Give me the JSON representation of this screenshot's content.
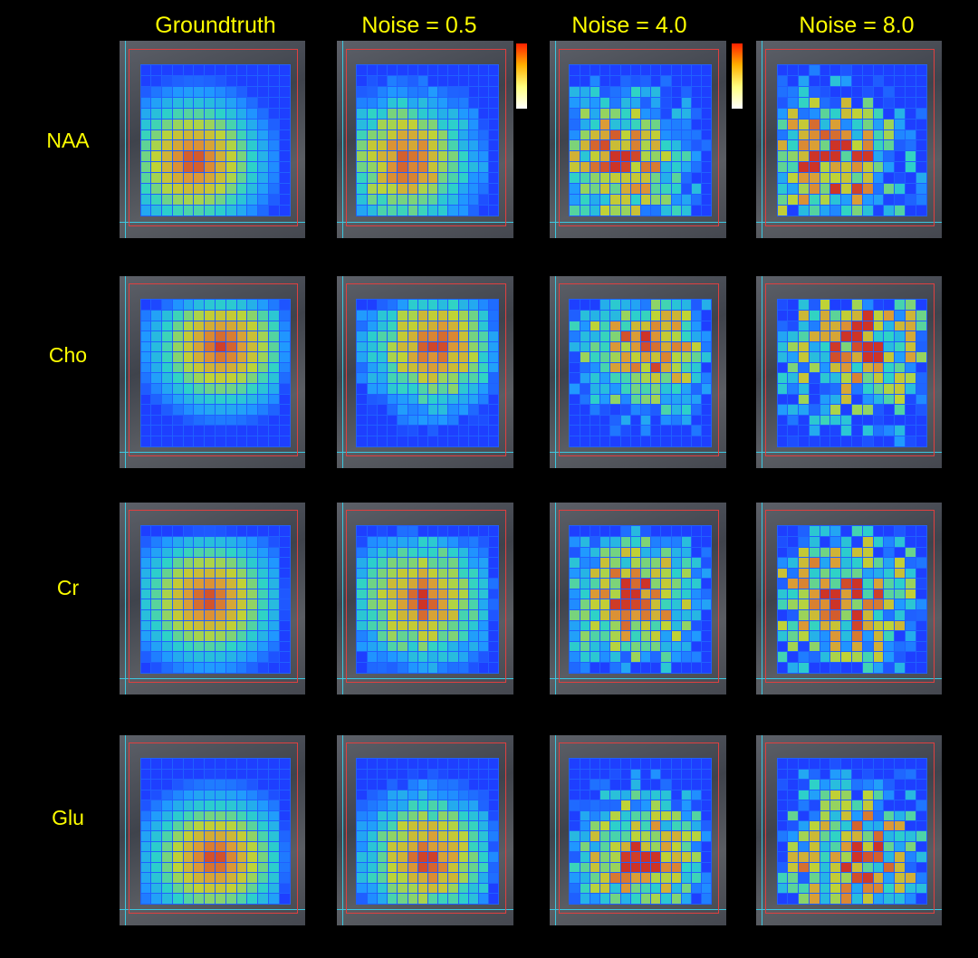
{
  "columns": [
    "Groundtruth",
    "Noise = 0.5",
    "Noise = 4.0",
    "Noise = 8.0"
  ],
  "rows": [
    "NAA",
    "Cho",
    "Cr",
    "Glu"
  ],
  "colormap": [
    "#1e3cff",
    "#20a0ff",
    "#30e0c0",
    "#d0e020",
    "#f0a020",
    "#e03010"
  ],
  "overlay_colors": {
    "box": "#e04040",
    "grid_line": "#3cc8e0",
    "cell_border": "#2060ff",
    "label": "#ffff00"
  }
}
